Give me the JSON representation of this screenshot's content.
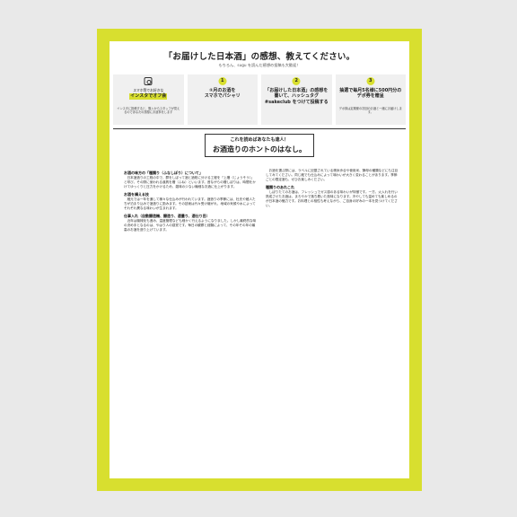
{
  "title": "「お届けした日本酒」の感想、教えてください。",
  "subtitle": "もちろん、sugu を読んだ感想の投稿も大歓迎！",
  "steps": [
    {
      "head": "スマホ等でお好きな",
      "head2": "インスタでオフ会",
      "body": "インスタに投稿すると、購入からスタッフが見えるのであなたの感想にお返事をします"
    },
    {
      "num": "1",
      "head": "①月のお酒を",
      "head2": "スマホでパシャリ",
      "body": ""
    },
    {
      "num": "2",
      "head": "「お届けした日本酒」の感想を書いて、ハッシュタグ #sakeclub をつけて投稿する",
      "head2": "",
      "body": ""
    },
    {
      "num": "3",
      "head": "抽選で毎月5名様に500円分のデポ券を贈呈",
      "head2": "",
      "body": "デポ券は定期便の次回のお酒と一緒にお届けします。"
    }
  ],
  "banner": {
    "line1": "これを読めばあなたも達人！",
    "line2": "お酒造りのホントのはなし。"
  },
  "columns": [
    {
      "sections": [
        {
          "h": "お酒の味方の「種類り（ふなしぼり）について」",
          "p": "日本酒造りの工程の中で、醪をしぼって酒と酒粕に分ける工程を「上槽（じょうそう）」と呼び、その際に使われる道具を槽（ふね）といいます。昔ながらの槽しぼりは、時間をかけてゆっくりと圧力をかけるため、雑味の少ない繊細なお酒に仕上がります。"
        },
        {
          "h": "お酒を構える技",
          "p": "蔵元では一年を通して様々な仕込みが行われています。酒造りの季節には、杜氏や蔵人たちが泊まり込みで酒造りに励みます。その技術は代々受け継がれ、地域の気候や水によってそれぞれ異なる味わいが生まれます。"
        },
        {
          "h": "仕事入れ（自動醸造機、醸造り、適量り、適仕り目）",
          "p": "近年は機械化も進み、温度管理なども細かく行えるようになりました。しかし最終的な味の決め手となるのは、やはり人の感覚です。毎日の観察と経験によって、その年その年の最高のお酒を造り上げています。"
        }
      ]
    },
    {
      "sections": [
        {
          "h": "",
          "p": "お酒を選ぶ際には、ラベルに記載されている精米歩合や使用米、酵母の種類などにも注目してみてください。同じ蔵でも仕込みによって味わいが大きく変わることがあります。季節ごとの限定酒も、ぜひお楽しみください。"
        },
        {
          "h": "種類りのあれこれ",
          "p": "しぼりたてのお酒は、フレッシュでガス感のある味わいが特徴です。一方、火入れを行い熟成させたお酒は、まろやかで落ち着いた風味になります。冷やしても温めても楽しめるのが日本酒の魅力です。お料理との相性も考えながら、ご自身の好みの一本を見つけてください。"
        }
      ]
    }
  ]
}
